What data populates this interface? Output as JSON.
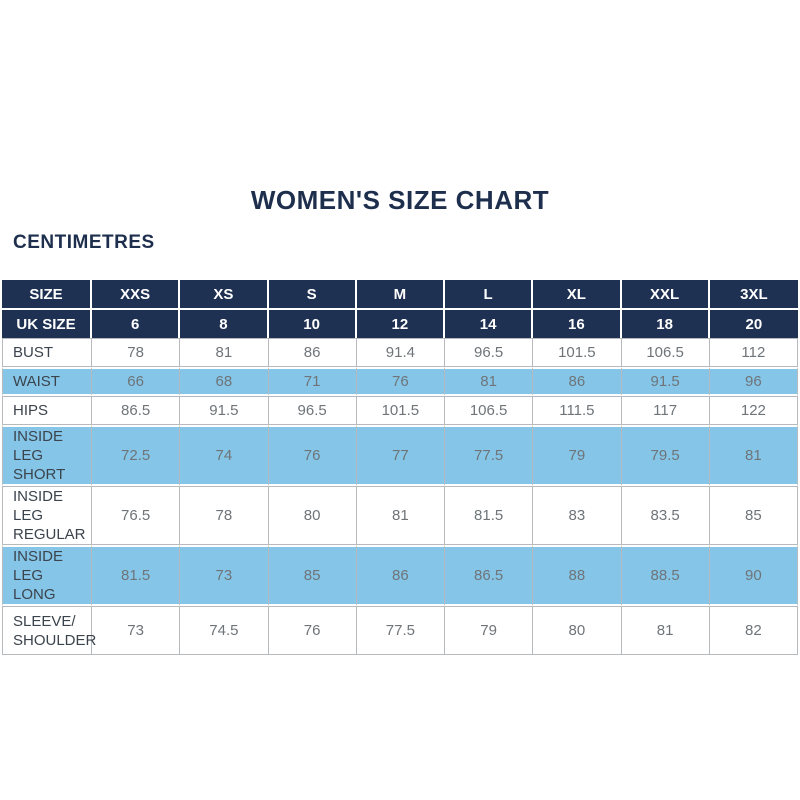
{
  "chart_data": {
    "type": "table",
    "title": "WOMEN'S SIZE CHART",
    "unit_label": "CENTIMETRES",
    "header_rows": [
      {
        "label": "SIZE",
        "values": [
          "XXS",
          "XS",
          "S",
          "M",
          "L",
          "XL",
          "XXL",
          "3XL"
        ]
      },
      {
        "label": "UK SIZE",
        "values": [
          "6",
          "8",
          "10",
          "12",
          "14",
          "16",
          "18",
          "20"
        ]
      }
    ],
    "body_rows": [
      {
        "label": "BUST",
        "values": [
          "78",
          "81",
          "86",
          "91.4",
          "96.5",
          "101.5",
          "106.5",
          "112"
        ]
      },
      {
        "label": "WAIST",
        "values": [
          "66",
          "68",
          "71",
          "76",
          "81",
          "86",
          "91.5",
          "96"
        ]
      },
      {
        "label": "HIPS",
        "values": [
          "86.5",
          "91.5",
          "96.5",
          "101.5",
          "106.5",
          "111.5",
          "117",
          "122"
        ]
      },
      {
        "label": "INSIDE LEG\nSHORT",
        "values": [
          "72.5",
          "74",
          "76",
          "77",
          "77.5",
          "79",
          "79.5",
          "81"
        ]
      },
      {
        "label": "INSIDE LEG\nREGULAR",
        "values": [
          "76.5",
          "78",
          "80",
          "81",
          "81.5",
          "83",
          "83.5",
          "85"
        ]
      },
      {
        "label": "INSIDE LEG\nLONG",
        "values": [
          "81.5",
          "73",
          "85",
          "86",
          "86.5",
          "88",
          "88.5",
          "90"
        ]
      },
      {
        "label": "SLEEVE/\nSHOULDER",
        "values": [
          "73",
          "74.5",
          "76",
          "77.5",
          "79",
          "80",
          "81",
          "82"
        ]
      }
    ],
    "layout": {
      "row_striping": "alternating white and light blue body rows",
      "header_style": "navy background, white bold text"
    }
  },
  "colors": {
    "header_navy": "#1f3152",
    "row_light_blue": "#85c6e8",
    "title_text": "#1e2f4e",
    "row_label_text": "#3b434c",
    "value_text": "#6e7478",
    "grid_border": "#b6babd"
  }
}
